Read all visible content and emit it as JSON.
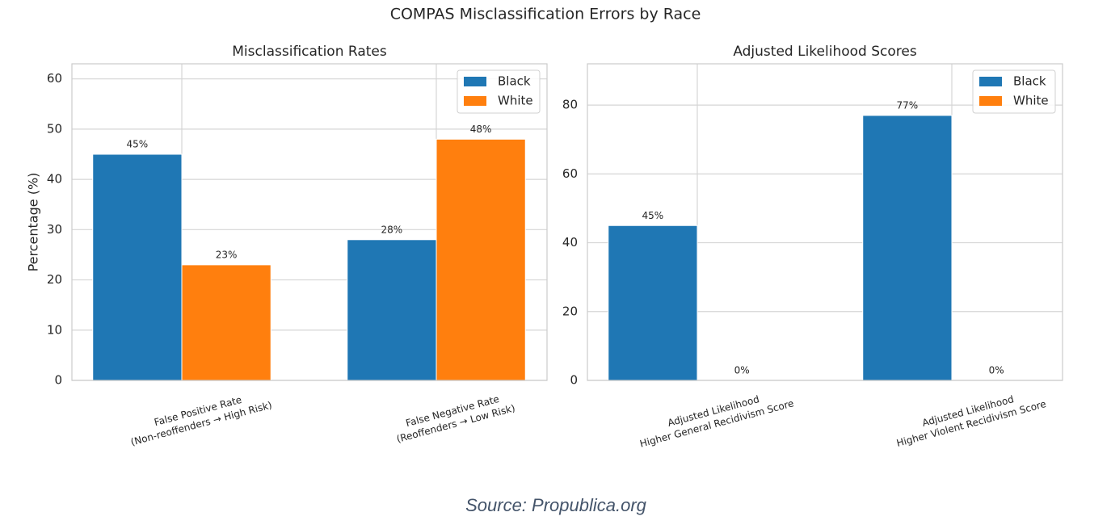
{
  "title": "COMPAS Misclassification Errors by Race",
  "source": "Source: Propublica.org",
  "chart_data": [
    {
      "type": "bar",
      "title": "Misclassification Rates",
      "ylabel": "Percentage (%)",
      "categories": [
        "False Positive Rate\n(Non-reoffenders → High Risk)",
        "False Negative Rate\n(Reoffenders → Low Risk)"
      ],
      "series": [
        {
          "name": "Black",
          "color": "#1f77b4",
          "values": [
            45,
            28
          ],
          "value_labels": [
            "45%",
            "28%"
          ]
        },
        {
          "name": "White",
          "color": "#ff7f0e",
          "values": [
            23,
            48
          ],
          "value_labels": [
            "23%",
            "48%"
          ]
        }
      ],
      "ylim": [
        0,
        63
      ],
      "yticks": [
        0,
        10,
        20,
        30,
        40,
        50,
        60
      ],
      "grid": true,
      "legend": "upper right"
    },
    {
      "type": "bar",
      "title": "Adjusted Likelihood Scores",
      "categories": [
        "Adjusted Likelihood\nHigher General Recidivism Score",
        "Adjusted Likelihood\nHigher Violent Recidivism Score"
      ],
      "series": [
        {
          "name": "Black",
          "color": "#1f77b4",
          "values": [
            45,
            77
          ],
          "value_labels": [
            "45%",
            "77%"
          ]
        },
        {
          "name": "White",
          "color": "#ff7f0e",
          "values": [
            0,
            0
          ],
          "value_labels": [
            "0%",
            "0%"
          ]
        }
      ],
      "ylim": [
        0,
        92
      ],
      "yticks": [
        0,
        20,
        40,
        60,
        80
      ],
      "grid": true,
      "legend": "upper right"
    }
  ]
}
